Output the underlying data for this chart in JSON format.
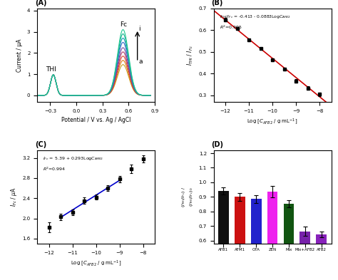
{
  "panel_A": {
    "label": "(A)",
    "xlabel": "Potential / V vs. Ag / AgCl",
    "ylabel": "Current / μA",
    "xlim": [
      -0.45,
      0.9
    ],
    "ylim": [
      -0.3,
      4.1
    ],
    "xticks": [
      -0.3,
      0.0,
      0.3,
      0.6,
      0.9
    ],
    "yticks": [
      0,
      1,
      2,
      3,
      4
    ],
    "thi_peak_x": -0.265,
    "fc_peak_x": 0.535,
    "thi_sigma": 0.032,
    "fc_sigma": 0.065,
    "n_curves": 9,
    "thi_amps": [
      0.97,
      0.97,
      0.97,
      0.97,
      0.97,
      0.97,
      0.97,
      0.97,
      0.97
    ],
    "fc_amps": [
      1.45,
      1.65,
      1.85,
      2.05,
      2.25,
      2.5,
      2.7,
      2.9,
      3.1
    ],
    "colors": [
      "#c8a020",
      "#e07810",
      "#d84030",
      "#b03868",
      "#7848a0",
      "#3868c8",
      "#1898b8",
      "#18b090",
      "#20c890"
    ]
  },
  "panel_B": {
    "label": "(B)",
    "xlim": [
      -12.5,
      -7.5
    ],
    "ylim": [
      0.27,
      0.7
    ],
    "xticks": [
      -12,
      -11,
      -10,
      -9,
      -8
    ],
    "yticks": [
      0.3,
      0.4,
      0.5,
      0.6,
      0.7
    ],
    "x_data": [
      -12,
      -11.5,
      -11,
      -10.5,
      -10,
      -9.5,
      -9,
      -8.5,
      -8
    ],
    "y_data": [
      0.648,
      0.607,
      0.554,
      0.514,
      0.463,
      0.42,
      0.365,
      0.333,
      0.305
    ],
    "y_err": [
      0.008,
      0.007,
      0.007,
      0.006,
      0.007,
      0.007,
      0.008,
      0.007,
      0.008
    ],
    "slope": -0.0883,
    "intercept": -0.413,
    "line_color": "#cc0000",
    "marker_color": "black"
  },
  "panel_C": {
    "label": "(C)",
    "xlim": [
      -12.5,
      -7.5
    ],
    "ylim": [
      1.5,
      3.35
    ],
    "xticks": [
      -12,
      -11,
      -10,
      -9,
      -8
    ],
    "yticks": [
      1.6,
      2.0,
      2.4,
      2.8,
      3.2
    ],
    "x_data": [
      -12,
      -11.5,
      -11,
      -10.5,
      -10,
      -9.5,
      -9,
      -8.5,
      -8
    ],
    "y_data": [
      1.82,
      2.03,
      2.12,
      2.35,
      2.42,
      2.6,
      2.78,
      2.98,
      3.18
    ],
    "y_err": [
      0.1,
      0.06,
      0.06,
      0.06,
      0.05,
      0.05,
      0.06,
      0.08,
      0.07
    ],
    "slope": 0.293,
    "intercept": 5.39,
    "fit_x_start": -11.5,
    "fit_x_end": -9.0,
    "line_color": "#0000cc",
    "marker_color": "black"
  },
  "panel_D": {
    "label": "(D)",
    "ylim": [
      0.58,
      1.22
    ],
    "yticks": [
      0.6,
      0.7,
      0.8,
      0.9,
      1.0,
      1.1,
      1.2
    ],
    "categories": [
      "AFB1",
      "AFM1",
      "OTA",
      "ZEN",
      "Mix",
      "Mix+AFB2",
      "AFB2"
    ],
    "values": [
      0.94,
      0.9,
      0.885,
      0.935,
      0.855,
      0.665,
      0.645
    ],
    "y_err": [
      0.025,
      0.025,
      0.025,
      0.04,
      0.025,
      0.03,
      0.02
    ],
    "bar_colors": [
      "#111111",
      "#cc1111",
      "#2222cc",
      "#ee22ee",
      "#115511",
      "#7722aa",
      "#8822bb"
    ]
  }
}
